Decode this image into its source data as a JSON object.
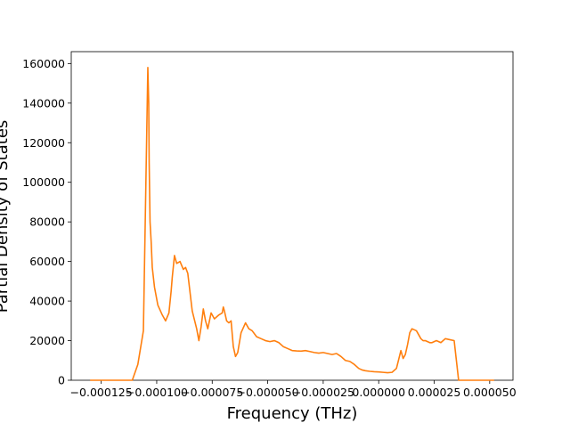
{
  "chart_data": {
    "type": "line",
    "title": "",
    "xlabel": "Frequency (THz)",
    "ylabel": "Partial Density of States",
    "xlim": [
      -0.0001385,
      6.05e-05
    ],
    "ylim": [
      0,
      166000
    ],
    "x_tick_values": [
      -0.000125,
      -0.0001,
      -7.5e-05,
      -5e-05,
      -2.5e-05,
      0.0,
      2.5e-05,
      5e-05
    ],
    "x_tick_labels": [
      "−0.000125",
      "−0.000100",
      "−0.000075",
      "−0.000050",
      "−0.000025",
      "0.000000",
      "0.000025",
      "0.000050"
    ],
    "y_tick_values": [
      0,
      20000,
      40000,
      60000,
      80000,
      100000,
      120000,
      140000,
      160000
    ],
    "y_tick_labels": [
      "0",
      "20000",
      "40000",
      "60000",
      "80000",
      "100000",
      "120000",
      "140000",
      "160000"
    ],
    "grid": false,
    "legend": "none",
    "line_color": "#ff7f0e",
    "series": [
      {
        "color": "#ff7f0e",
        "x": [
          -0.00013,
          -0.000123,
          -0.000115,
          -0.000111,
          -0.0001085,
          -0.000106,
          -0.000104,
          -0.0001036,
          -0.0001034,
          -0.000103,
          -0.0001025,
          -0.000102,
          -0.000101,
          -9.95e-05,
          -9.75e-05,
          -9.6e-05,
          -9.45e-05,
          -9.35e-05,
          -9.3e-05,
          -9.2e-05,
          -9.1e-05,
          -8.95e-05,
          -8.8e-05,
          -8.7e-05,
          -8.6e-05,
          -8.4e-05,
          -8.2e-05,
          -8.1e-05,
          -8e-05,
          -7.9e-05,
          -7.8e-05,
          -7.7e-05,
          -7.55e-05,
          -7.4e-05,
          -7.2e-05,
          -7.05e-05,
          -7e-05,
          -6.95e-05,
          -6.85e-05,
          -6.75e-05,
          -6.65e-05,
          -6.55e-05,
          -6.45e-05,
          -6.35e-05,
          -6.2e-05,
          -6e-05,
          -5.85e-05,
          -5.7e-05,
          -5.5e-05,
          -5.3e-05,
          -5.1e-05,
          -4.9e-05,
          -4.7e-05,
          -4.5e-05,
          -4.3e-05,
          -4.1e-05,
          -3.9e-05,
          -3.7e-05,
          -3.5e-05,
          -3.3e-05,
          -3.1e-05,
          -2.9e-05,
          -2.7e-05,
          -2.5e-05,
          -2.3e-05,
          -2.1e-05,
          -1.9e-05,
          -1.7e-05,
          -1.5e-05,
          -1.3e-05,
          -1.1e-05,
          -9e-06,
          -7.5e-06,
          -6e-06,
          -4e-06,
          -2e-06,
          0.0,
          2e-06,
          4e-06,
          6e-06,
          8e-06,
          1e-05,
          1.1e-05,
          1.2e-05,
          1.3e-05,
          1.4e-05,
          1.5e-05,
          1.7e-05,
          1.9e-05,
          2e-05,
          2.1e-05,
          2.2e-05,
          2.3e-05,
          2.4e-05,
          2.6e-05,
          2.8e-05,
          3e-05,
          3.2e-05,
          3.4e-05,
          3.5e-05,
          3.6e-05,
          3.75e-05,
          3.8e-05,
          3.85e-05,
          3.9e-05,
          3.95e-05,
          4.5e-05,
          5.2e-05
        ],
        "y": [
          0,
          0,
          0,
          0,
          8000,
          25000,
          158000,
          140000,
          110000,
          80000,
          70000,
          57000,
          47000,
          38000,
          33000,
          30000,
          34000,
          45000,
          52000,
          63000,
          59000,
          60000,
          56000,
          57000,
          54000,
          35000,
          26000,
          20000,
          27000,
          36000,
          30000,
          26000,
          34000,
          31000,
          33000,
          34000,
          37000,
          35000,
          30000,
          29000,
          30000,
          17000,
          12000,
          14000,
          24000,
          29000,
          26000,
          25000,
          22000,
          21000,
          20000,
          19500,
          20000,
          19000,
          17000,
          16000,
          15000,
          14800,
          14700,
          15000,
          14500,
          14000,
          13700,
          14000,
          13500,
          13000,
          13500,
          12000,
          10000,
          9500,
          8000,
          6000,
          5200,
          4800,
          4500,
          4300,
          4200,
          4000,
          3800,
          4000,
          6000,
          15000,
          11000,
          13000,
          18000,
          24000,
          26000,
          25000,
          21000,
          20000,
          20000,
          19500,
          19000,
          19000,
          20000,
          19000,
          21000,
          20500,
          20000,
          10000,
          0,
          0,
          0,
          0,
          0,
          0,
          0,
          0
        ]
      }
    ]
  }
}
